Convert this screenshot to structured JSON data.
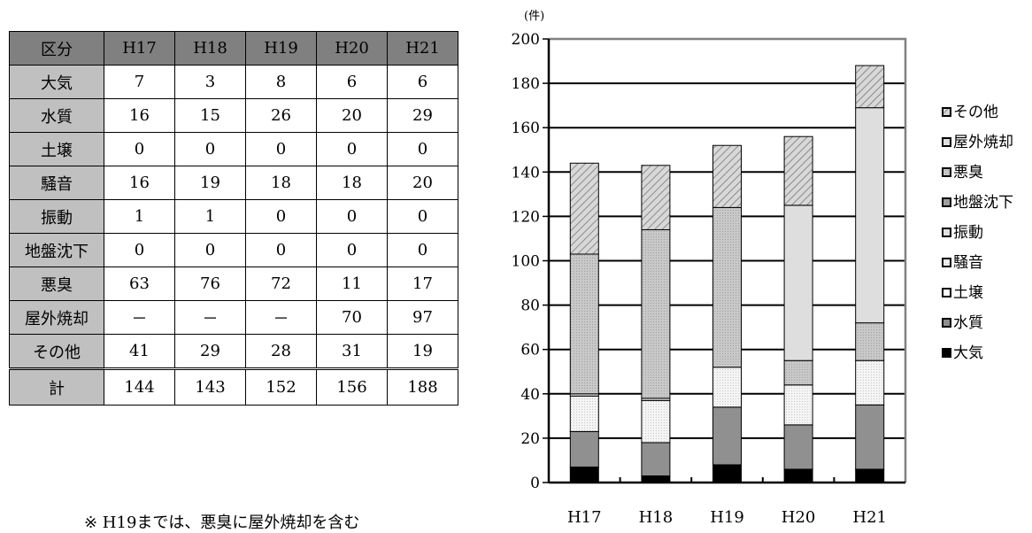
{
  "table": {
    "header": [
      "区分",
      "H17",
      "H18",
      "H19",
      "H20",
      "H21"
    ],
    "rows": [
      {
        "label": "大気",
        "values": [
          "7",
          "3",
          "8",
          "6",
          "6"
        ]
      },
      {
        "label": "水質",
        "values": [
          "16",
          "15",
          "26",
          "20",
          "29"
        ]
      },
      {
        "label": "土壌",
        "values": [
          "0",
          "0",
          "0",
          "0",
          "0"
        ]
      },
      {
        "label": "騒音",
        "values": [
          "16",
          "19",
          "18",
          "18",
          "20"
        ]
      },
      {
        "label": "振動",
        "values": [
          "1",
          "1",
          "0",
          "0",
          "0"
        ]
      },
      {
        "label": "地盤沈下",
        "values": [
          "0",
          "0",
          "0",
          "0",
          "0"
        ]
      },
      {
        "label": "悪臭",
        "values": [
          "63",
          "76",
          "72",
          "11",
          "17"
        ]
      },
      {
        "label": "屋外焼却",
        "values": [
          "－",
          "－",
          "－",
          "70",
          "97"
        ]
      },
      {
        "label": "その他",
        "values": [
          "41",
          "29",
          "28",
          "31",
          "19"
        ]
      }
    ],
    "total": {
      "label": "計",
      "values": [
        "144",
        "143",
        "152",
        "156",
        "188"
      ]
    }
  },
  "note": "※ H19までは、悪臭に屋外焼却を含む",
  "chart_data": {
    "type": "bar",
    "stacked": true,
    "categories": [
      "H17",
      "H18",
      "H19",
      "H20",
      "H21"
    ],
    "series": [
      {
        "name": "大気",
        "values": [
          7,
          3,
          8,
          6,
          6
        ],
        "color": "#000000"
      },
      {
        "name": "水質",
        "values": [
          16,
          15,
          26,
          20,
          29
        ],
        "color": "#909090"
      },
      {
        "name": "土壌",
        "values": [
          0,
          0,
          0,
          0,
          0
        ],
        "color": "#ffffff"
      },
      {
        "name": "騒音",
        "values": [
          16,
          19,
          18,
          18,
          20
        ],
        "color": "#f0f0f0"
      },
      {
        "name": "振動",
        "values": [
          1,
          1,
          0,
          0,
          0
        ],
        "color": "#d8d8d8"
      },
      {
        "name": "地盤沈下",
        "values": [
          0,
          0,
          0,
          0,
          0
        ],
        "color": "#a0a0a0"
      },
      {
        "name": "悪臭",
        "values": [
          63,
          76,
          72,
          11,
          17
        ],
        "color": "#c4c4c4"
      },
      {
        "name": "屋外焼却",
        "values": [
          0,
          0,
          0,
          70,
          97
        ],
        "color": "#e0e0e0"
      },
      {
        "name": "その他",
        "values": [
          41,
          29,
          28,
          31,
          19
        ],
        "color": "#b0b0b0"
      }
    ],
    "unit": "(件)",
    "ylim": [
      0,
      200
    ],
    "yticks": [
      0,
      20,
      40,
      60,
      80,
      100,
      120,
      140,
      160,
      180,
      200
    ],
    "grid": true,
    "legend": "right"
  }
}
